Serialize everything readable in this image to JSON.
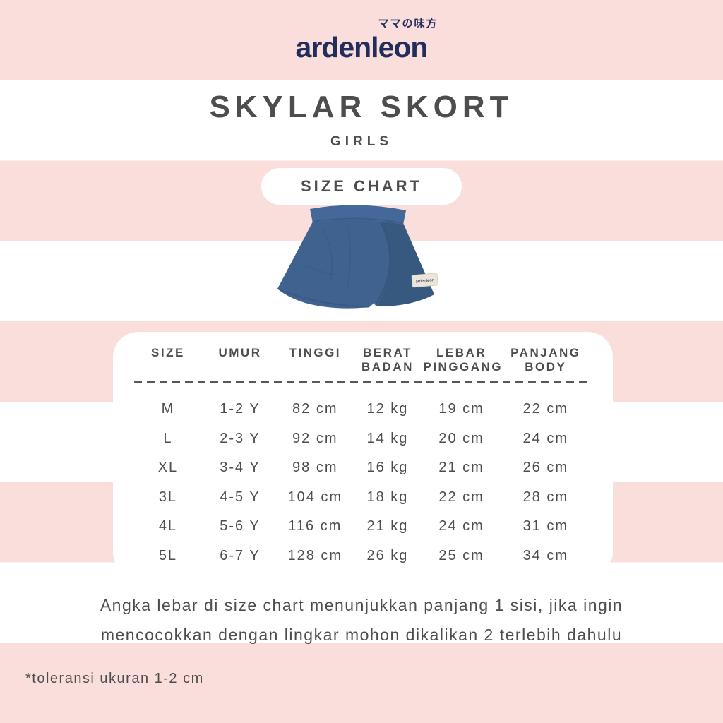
{
  "brand": {
    "tagline": "ママの味方",
    "name": "ardenleon"
  },
  "header": {
    "title": "SKYLAR SKORT",
    "subtitle": "GIRLS"
  },
  "size_chart": {
    "heading": "SIZE CHART",
    "columns": [
      "SIZE",
      "UMUR",
      "TINGGI",
      "BERAT\nBADAN",
      "LEBAR\nPINGGANG",
      "PANJANG\nBODY"
    ],
    "rows": [
      [
        "M",
        "1-2 Y",
        "82 cm",
        "12 kg",
        "19 cm",
        "22 cm"
      ],
      [
        "L",
        "2-3 Y",
        "92 cm",
        "14 kg",
        "20 cm",
        "24 cm"
      ],
      [
        "XL",
        "3-4 Y",
        "98 cm",
        "16 kg",
        "21 cm",
        "26 cm"
      ],
      [
        "3L",
        "4-5 Y",
        "104 cm",
        "18 kg",
        "22 cm",
        "28 cm"
      ],
      [
        "4L",
        "5-6 Y",
        "116 cm",
        "21 kg",
        "24 cm",
        "31 cm"
      ],
      [
        "5L",
        "6-7 Y",
        "128 cm",
        "26 kg",
        "25 cm",
        "34 cm"
      ]
    ]
  },
  "product_tag": "ardenleon",
  "notes": {
    "wrap_lines": [
      "Angka lebar di size chart menunjukkan panjang 1 sisi, jika ingin",
      "mencocokkan dengan lingkar mohon dikalikan 2 terlebih dahulu"
    ],
    "tolerance": "*toleransi ukuran 1-2 cm"
  },
  "colors": {
    "stripe_pink": "#fadedc",
    "stripe_white": "#ffffff",
    "text_dark": "#4d4d4d",
    "brand_navy": "#232d5b",
    "skort_blue": "#3f628f",
    "skort_blue_dark": "#38597f",
    "skort_waistband": "#44689a"
  }
}
